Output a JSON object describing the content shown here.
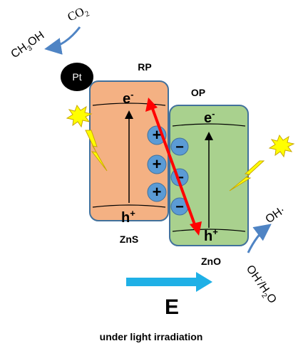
{
  "labels": {
    "co2": "CO",
    "co2_sub": "2",
    "ch3oh": {
      "a": "CH",
      "sub1": "3",
      "b": "OH"
    },
    "pt": "Pt",
    "rp": "RP",
    "op": "OP",
    "zns": "ZnS",
    "zno": "ZnO",
    "e_zns": "e",
    "e_zno": "e",
    "h_zns": "h",
    "h_zno": "h",
    "minus_sup": "-",
    "plus_sup": "+",
    "oh_rad": "OH",
    "oh_rad_dot": "·",
    "oh_h2o": {
      "a": "OH",
      "sup": "-",
      "b": "/H",
      "sub": "2",
      "c": "O"
    },
    "field": "E",
    "caption": "under light irradiation"
  },
  "charges": {
    "plus": "+",
    "minus": "−"
  },
  "colors": {
    "zns_fill": "#f4b183",
    "zno_fill": "#a9d18e",
    "border": "#41719c",
    "charge_fill": "#5b9bd5",
    "red_arrow": "#ff0000",
    "blue_arrow": "#1fb0e6",
    "curve_arrow": "#4f84c4",
    "lightning": "#ffff00",
    "pt_fill": "#000000"
  },
  "icons": [
    "lightning-icon",
    "starburst-icon",
    "curved-arrow-icon",
    "double-arrow-icon",
    "right-arrow-icon"
  ]
}
